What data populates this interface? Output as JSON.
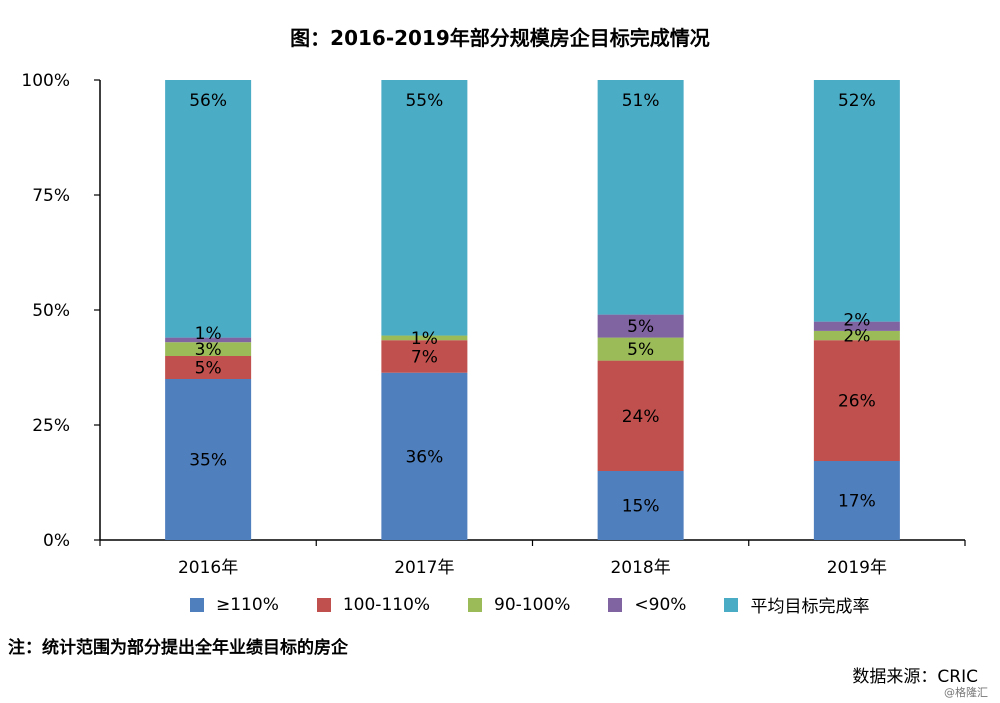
{
  "chart_data": {
    "type": "bar",
    "stacked": true,
    "title": "图：2016-2019年部分规模房企目标完成情况",
    "categories": [
      "2016年",
      "2017年",
      "2018年",
      "2019年"
    ],
    "y_ticks": [
      "0%",
      "25%",
      "50%",
      "75%",
      "100%"
    ],
    "ylim": [
      0,
      100
    ],
    "series": [
      {
        "name": "≥110%",
        "color": "#4f7fbd",
        "values": [
          35,
          36,
          15,
          17
        ]
      },
      {
        "name": "100-110%",
        "color": "#c0504d",
        "values": [
          5,
          7,
          24,
          26
        ]
      },
      {
        "name": "90-100%",
        "color": "#9bbb59",
        "values": [
          3,
          1,
          5,
          2
        ]
      },
      {
        "name": "<90%",
        "color": "#8064a2",
        "values": [
          1,
          0,
          5,
          2
        ]
      },
      {
        "name": "平均目标完成率",
        "color": "#4bacc6",
        "values": [
          56,
          55,
          51,
          52
        ]
      }
    ],
    "segment_labels": [
      [
        "35%",
        "36%",
        "15%",
        "17%"
      ],
      [
        "5%",
        "7%",
        "24%",
        "26%"
      ],
      [
        "3%",
        "1%",
        "5%",
        "2%"
      ],
      [
        "1%",
        "",
        "5%",
        "2%"
      ],
      [
        "56%",
        "55%",
        "51%",
        "52%"
      ]
    ],
    "legend_position": "bottom",
    "grid": false
  },
  "note": "注：统计范围为部分提出全年业绩目标的房企",
  "source": "数据来源：CRIC",
  "watermark": "@格隆汇"
}
